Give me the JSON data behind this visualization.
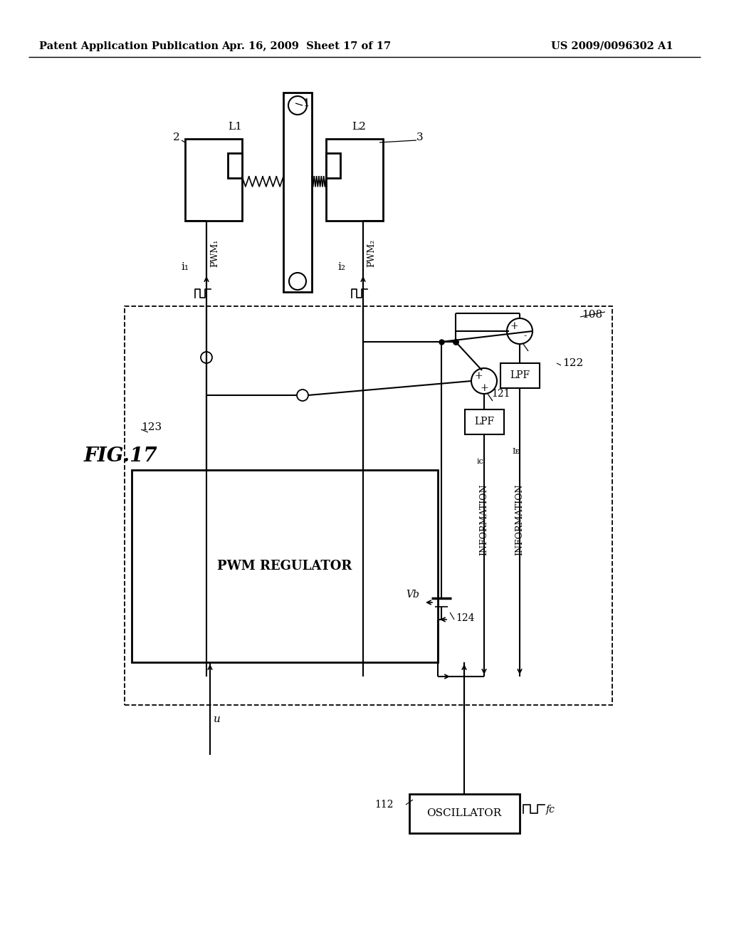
{
  "title_left": "Patent Application Publication",
  "title_mid": "Apr. 16, 2009  Sheet 17 of 17",
  "title_right": "US 2009/0096302 A1",
  "bg_color": "#ffffff"
}
